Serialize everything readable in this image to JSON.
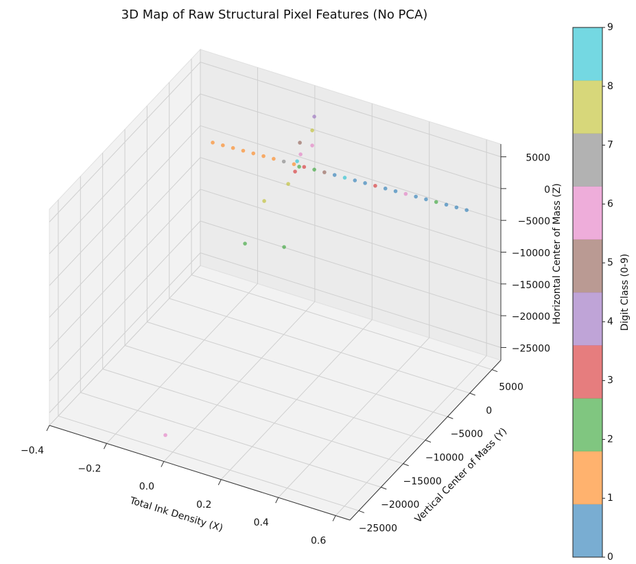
{
  "chart_data": {
    "type": "scatter3d",
    "title": "3D Map of Raw Structural Pixel Features (No PCA)",
    "xlabel": "Total Ink Density (X)",
    "ylabel": "Vertical Center of Mass (Y)",
    "zlabel": "Horizontal Center of Mass (Z)",
    "x": [
      -0.3,
      -0.264,
      -0.228,
      -0.192,
      -0.156,
      -0.12,
      -0.084,
      -0.048,
      -0.012,
      0.024,
      0.06,
      0.096,
      0.132,
      0.168,
      0.204,
      0.24,
      0.276,
      0.312,
      0.348,
      0.384,
      0.42,
      0.456,
      0.492,
      0.528,
      0.564,
      0.6,
      0.1,
      0.1,
      0.1,
      0.1,
      0.1,
      0.1,
      0.1,
      0.1,
      0.0,
      0.1,
      0.1,
      0.1,
      0.1
    ],
    "y": [
      3340,
      3307,
      3274,
      3242,
      3209,
      3176,
      3143,
      3111,
      3078,
      3045,
      3012,
      2980,
      2947,
      2914,
      2881,
      2849,
      2816,
      2783,
      2750,
      2718,
      2685,
      2652,
      2619,
      2587,
      2554,
      2521,
      434,
      -29,
      -2811,
      -29,
      -5439,
      -10849,
      -15176,
      -6366,
      -26660,
      -3430,
      -3893,
      -2657,
      -2966
    ],
    "z": [
      -3534,
      -3424,
      -3314,
      -3203,
      -3093,
      -2983,
      -2873,
      -2763,
      -2653,
      -2543,
      -2432,
      -2322,
      -2212,
      -2102,
      -1992,
      -1882,
      -1771,
      -1661,
      -1551,
      -1441,
      -1331,
      -1221,
      -1110,
      -1000,
      -890,
      -780,
      8378,
      6553,
      6672,
      4177,
      2136,
      3443,
      -56,
      -7108,
      -23102,
      4210,
      2935,
      4728,
      3011
    ],
    "classes": [
      1,
      1,
      1,
      1,
      1,
      1,
      1,
      7,
      1,
      3,
      2,
      5,
      0,
      9,
      0,
      0,
      3,
      0,
      0,
      6,
      0,
      0,
      2,
      0,
      0,
      0,
      4,
      8,
      5,
      6,
      8,
      8,
      2,
      2,
      6,
      9,
      3,
      6,
      2
    ],
    "xlim": [
      -0.4,
      0.65
    ],
    "ylim": [
      -27000,
      7000
    ],
    "zlim": [
      -27000,
      7000
    ],
    "xticks": [
      {
        "value": -0.4,
        "label": "−0.4"
      },
      {
        "value": -0.2,
        "label": "−0.2"
      },
      {
        "value": 0,
        "label": "0.0"
      },
      0.2,
      0.4,
      0.6
    ],
    "yticks": [
      {
        "value": -25000,
        "label": "−25000"
      },
      {
        "value": -20000,
        "label": "−20000"
      },
      {
        "value": -15000,
        "label": "−15000"
      },
      {
        "value": -10000,
        "label": "−10000"
      },
      {
        "value": -5000,
        "label": "−5000"
      },
      0,
      5000
    ],
    "zticks": [
      {
        "value": -25000,
        "label": "−25000"
      },
      {
        "value": -20000,
        "label": "−20000"
      },
      {
        "value": -15000,
        "label": "−15000"
      },
      {
        "value": -10000,
        "label": "−10000"
      },
      {
        "value": -5000,
        "label": "−5000"
      },
      0,
      5000
    ],
    "grid": true,
    "alpha": 0.6,
    "colorbar": {
      "label": "Digit Class (0-9)",
      "lim": [
        0,
        9
      ],
      "ticks": [
        0,
        1,
        2,
        3,
        4,
        5,
        6,
        7,
        8,
        9
      ],
      "colors": [
        "#1f77b4",
        "#ff7f0e",
        "#2ca02c",
        "#d62728",
        "#9467bd",
        "#8c564b",
        "#e377c2",
        "#7f7f7f",
        "#bcbd22",
        "#17becf"
      ]
    }
  }
}
